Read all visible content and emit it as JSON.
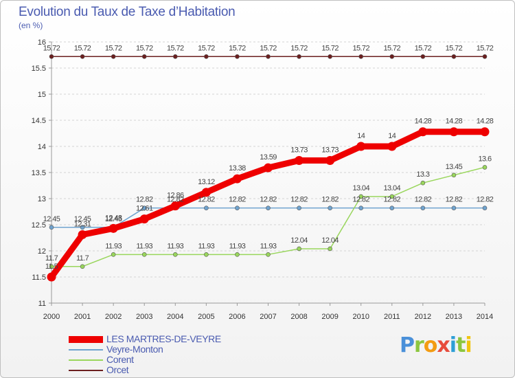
{
  "title": "Evolution du Taux de Taxe d’Habitation",
  "subtitle": "(en %)",
  "brand": {
    "letters": [
      {
        "ch": "P",
        "color": "#4a90d9"
      },
      {
        "ch": "r",
        "color": "#8cc63f"
      },
      {
        "ch": "o",
        "color": "#f39c12"
      },
      {
        "ch": "x",
        "color": "#e74c3c"
      },
      {
        "ch": "i",
        "color": "#2e9fd6"
      },
      {
        "ch": "t",
        "color": "#8cc63f"
      },
      {
        "ch": "i",
        "color": "#f1c40f"
      }
    ]
  },
  "chart_data": {
    "type": "line",
    "title": "Evolution du Taux de Taxe d’Habitation",
    "ylabel": "(en %)",
    "xlabel": "",
    "ylim": [
      11,
      16
    ],
    "yticks": [
      "11",
      "11.5",
      "12",
      "12.5",
      "13",
      "13.5",
      "14",
      "14.5",
      "15",
      "15.5",
      "16"
    ],
    "ytick_values": [
      11,
      11.5,
      12,
      12.5,
      13,
      13.5,
      14,
      14.5,
      15,
      15.5,
      16
    ],
    "categories": [
      "2000",
      "2001",
      "2002",
      "2003",
      "2004",
      "2005",
      "2006",
      "2007",
      "2008",
      "2009",
      "2010",
      "2011",
      "2012",
      "2013",
      "2014"
    ],
    "grid": "horizontal",
    "legend_position": "bottom-left",
    "series": [
      {
        "name": "Orcet",
        "color": "#6b1f1f",
        "style": "thin",
        "values": [
          15.72,
          15.72,
          15.72,
          15.72,
          15.72,
          15.72,
          15.72,
          15.72,
          15.72,
          15.72,
          15.72,
          15.72,
          15.72,
          15.72,
          15.72
        ],
        "labels": [
          "15.72",
          "15.72",
          "15.72",
          "15.72",
          "15.72",
          "15.72",
          "15.72",
          "15.72",
          "15.72",
          "15.72",
          "15.72",
          "15.72",
          "15.72",
          "15.72",
          "15.72"
        ]
      },
      {
        "name": "Veyre-Monton",
        "color": "#6fa3cf",
        "style": "thin",
        "values": [
          12.45,
          12.45,
          12.45,
          12.82,
          12.82,
          12.82,
          12.82,
          12.82,
          12.82,
          12.82,
          12.82,
          12.82,
          12.82,
          12.82,
          12.82
        ],
        "labels": [
          "12.45",
          "12.45",
          "12.45",
          "12.82",
          "12.82",
          "12.82",
          "12.82",
          "12.82",
          "12.82",
          "12.82",
          "12.82",
          "12.82",
          "12.82",
          "12.82",
          "12.82"
        ]
      },
      {
        "name": "Corent",
        "color": "#99d65c",
        "style": "thin",
        "values": [
          11.7,
          11.7,
          11.93,
          11.93,
          11.93,
          11.93,
          11.93,
          11.93,
          12.04,
          12.04,
          13.04,
          13.04,
          13.3,
          13.45,
          13.6
        ],
        "labels": [
          "11.7",
          "11.7",
          "11.93",
          "11.93",
          "11.93",
          "11.93",
          "11.93",
          "11.93",
          "12.04",
          "12.04",
          "13.04",
          "13.04",
          "13.3",
          "13.45",
          "13.6"
        ]
      },
      {
        "name": "LES MARTRES-DE-VEYRE",
        "color": "#ee0000",
        "style": "thick",
        "values": [
          11.5,
          12.31,
          12.43,
          12.61,
          12.86,
          13.12,
          13.38,
          13.59,
          13.73,
          13.73,
          14,
          14,
          14.28,
          14.28,
          14.28
        ],
        "labels": [
          "11.5",
          "12.31",
          "12.43",
          "12.61",
          "12.86",
          "13.12",
          "13.38",
          "13.59",
          "13.73",
          "13.73",
          "14",
          "14",
          "14.28",
          "14.28",
          "14.28"
        ]
      }
    ],
    "legend_order": [
      "LES MARTRES-DE-VEYRE",
      "Veyre-Monton",
      "Corent",
      "Orcet"
    ]
  }
}
